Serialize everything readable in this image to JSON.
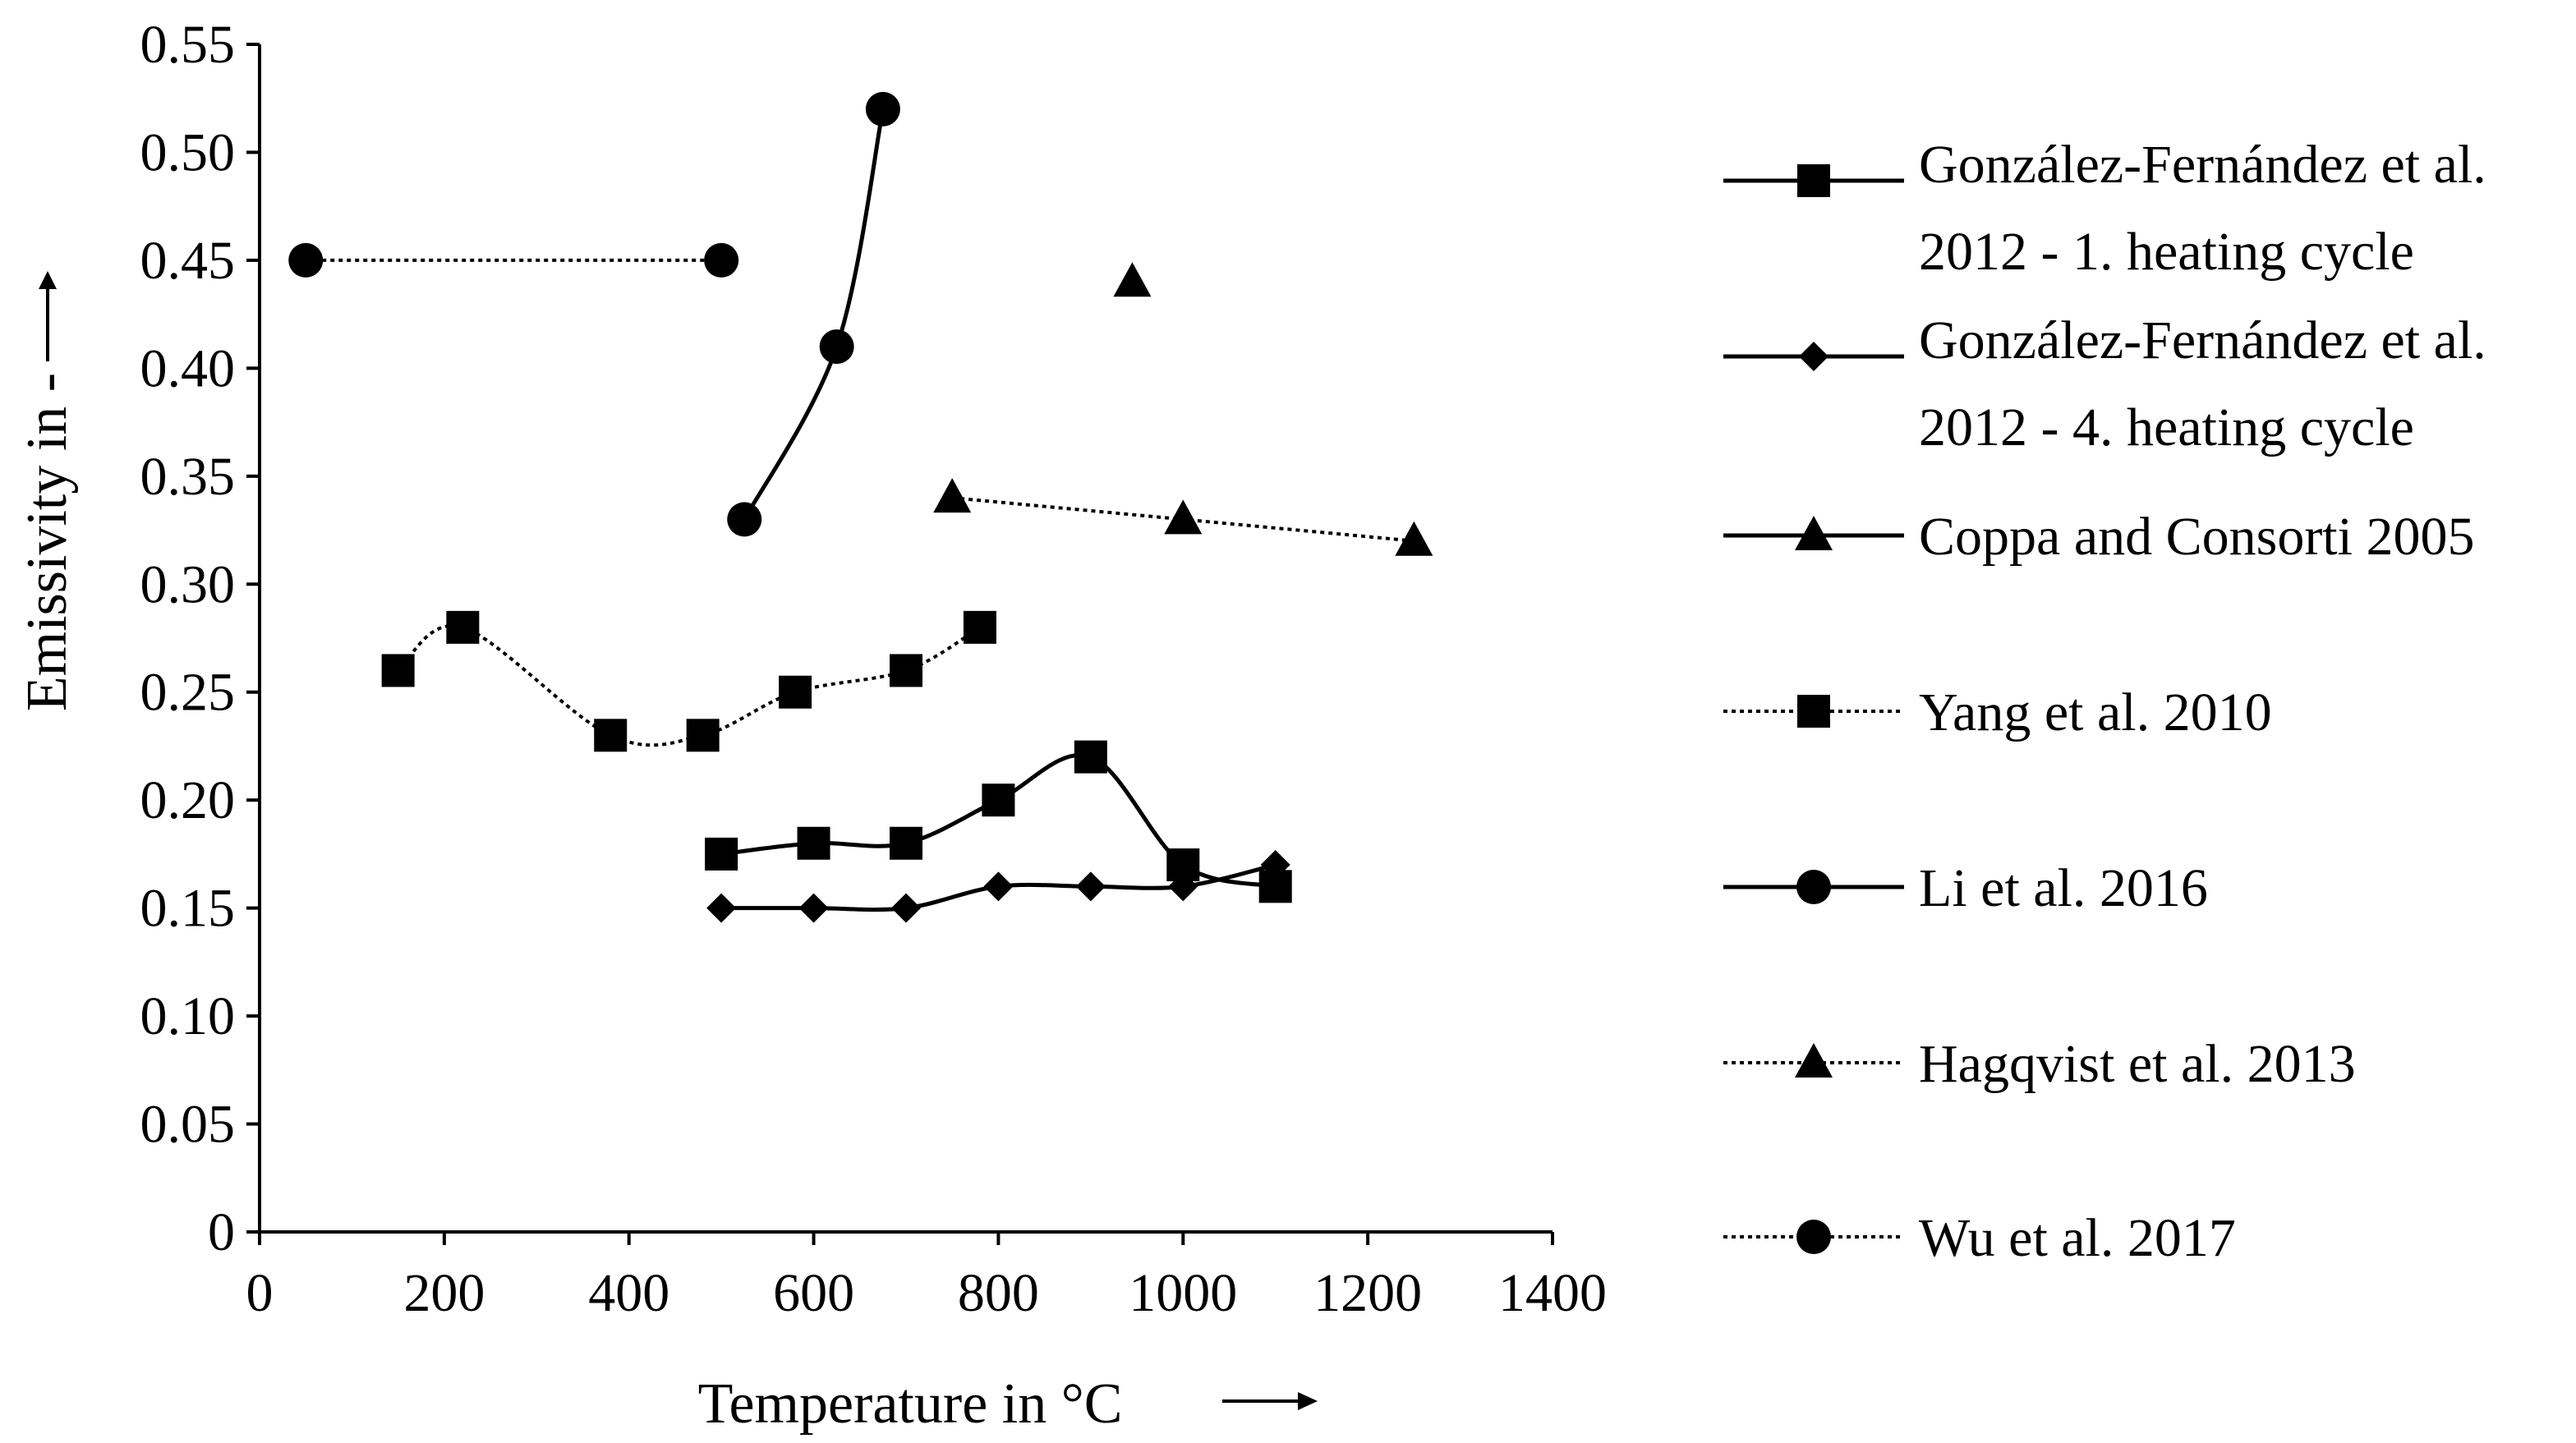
{
  "chart_data": {
    "type": "line",
    "xlabel": "Temperature in °C",
    "ylabel": "Emissivity in -",
    "xlim": [
      0,
      1400
    ],
    "ylim": [
      0,
      0.55
    ],
    "xticks": [
      0,
      200,
      400,
      600,
      800,
      1000,
      1200,
      1400
    ],
    "xtick_labels": [
      "0",
      "200",
      "400",
      "600",
      "800",
      "1000",
      "1200",
      "1400"
    ],
    "yticks": [
      0,
      0.05,
      0.1,
      0.15,
      0.2,
      0.25,
      0.3,
      0.35,
      0.4,
      0.45,
      0.5,
      0.55
    ],
    "ytick_labels": [
      "0",
      "0.05",
      "0.10",
      "0.15",
      "0.20",
      "0.25",
      "0.30",
      "0.35",
      "0.40",
      "0.45",
      "0.50",
      "0.55"
    ],
    "grid": false,
    "legend_position": "right",
    "series": [
      {
        "name": "González-Fernández et al. 2012 - 1. heating cycle",
        "legend_lines": [
          "González-Fernández et al.",
          "2012 - 1. heating cycle"
        ],
        "marker": "square",
        "line": "solid",
        "smooth": true,
        "x": [
          500,
          600,
          700,
          800,
          900,
          1000,
          1100
        ],
        "y": [
          0.175,
          0.18,
          0.18,
          0.2,
          0.22,
          0.17,
          0.16
        ]
      },
      {
        "name": "González-Fernández et al. 2012 - 4. heating cycle",
        "legend_lines": [
          "González-Fernández et al.",
          "2012 - 4. heating cycle"
        ],
        "marker": "diamond",
        "line": "solid",
        "smooth": true,
        "x": [
          500,
          600,
          700,
          800,
          900,
          1000,
          1100
        ],
        "y": [
          0.15,
          0.15,
          0.15,
          0.16,
          0.16,
          0.16,
          0.17
        ]
      },
      {
        "name": "Coppa and Consorti 2005",
        "legend_lines": [
          "Coppa and Consorti 2005"
        ],
        "marker": "triangle",
        "line": "solid",
        "smooth": false,
        "x": [
          945
        ],
        "y": [
          0.44
        ]
      },
      {
        "name": "Yang et al. 2010",
        "legend_lines": [
          "Yang et al. 2010"
        ],
        "marker": "square",
        "line": "dotted",
        "smooth": true,
        "x": [
          150,
          220,
          380,
          480,
          580,
          700,
          780
        ],
        "y": [
          0.26,
          0.28,
          0.23,
          0.23,
          0.25,
          0.26,
          0.28
        ]
      },
      {
        "name": "Li et al. 2016",
        "legend_lines": [
          "Li et al. 2016"
        ],
        "marker": "circle",
        "line": "solid",
        "smooth": true,
        "x": [
          525,
          625,
          675
        ],
        "y": [
          0.33,
          0.41,
          0.52
        ]
      },
      {
        "name": "Hagqvist et al. 2013",
        "legend_lines": [
          "Hagqvist et al. 2013"
        ],
        "marker": "triangle",
        "line": "dotted",
        "smooth": false,
        "x": [
          750,
          1000,
          1250
        ],
        "y": [
          0.34,
          0.33,
          0.32
        ]
      },
      {
        "name": "Wu et al. 2017",
        "legend_lines": [
          "Wu et al. 2017"
        ],
        "marker": "circle",
        "line": "dotted",
        "smooth": false,
        "x": [
          50,
          500
        ],
        "y": [
          0.45,
          0.45
        ]
      }
    ]
  }
}
